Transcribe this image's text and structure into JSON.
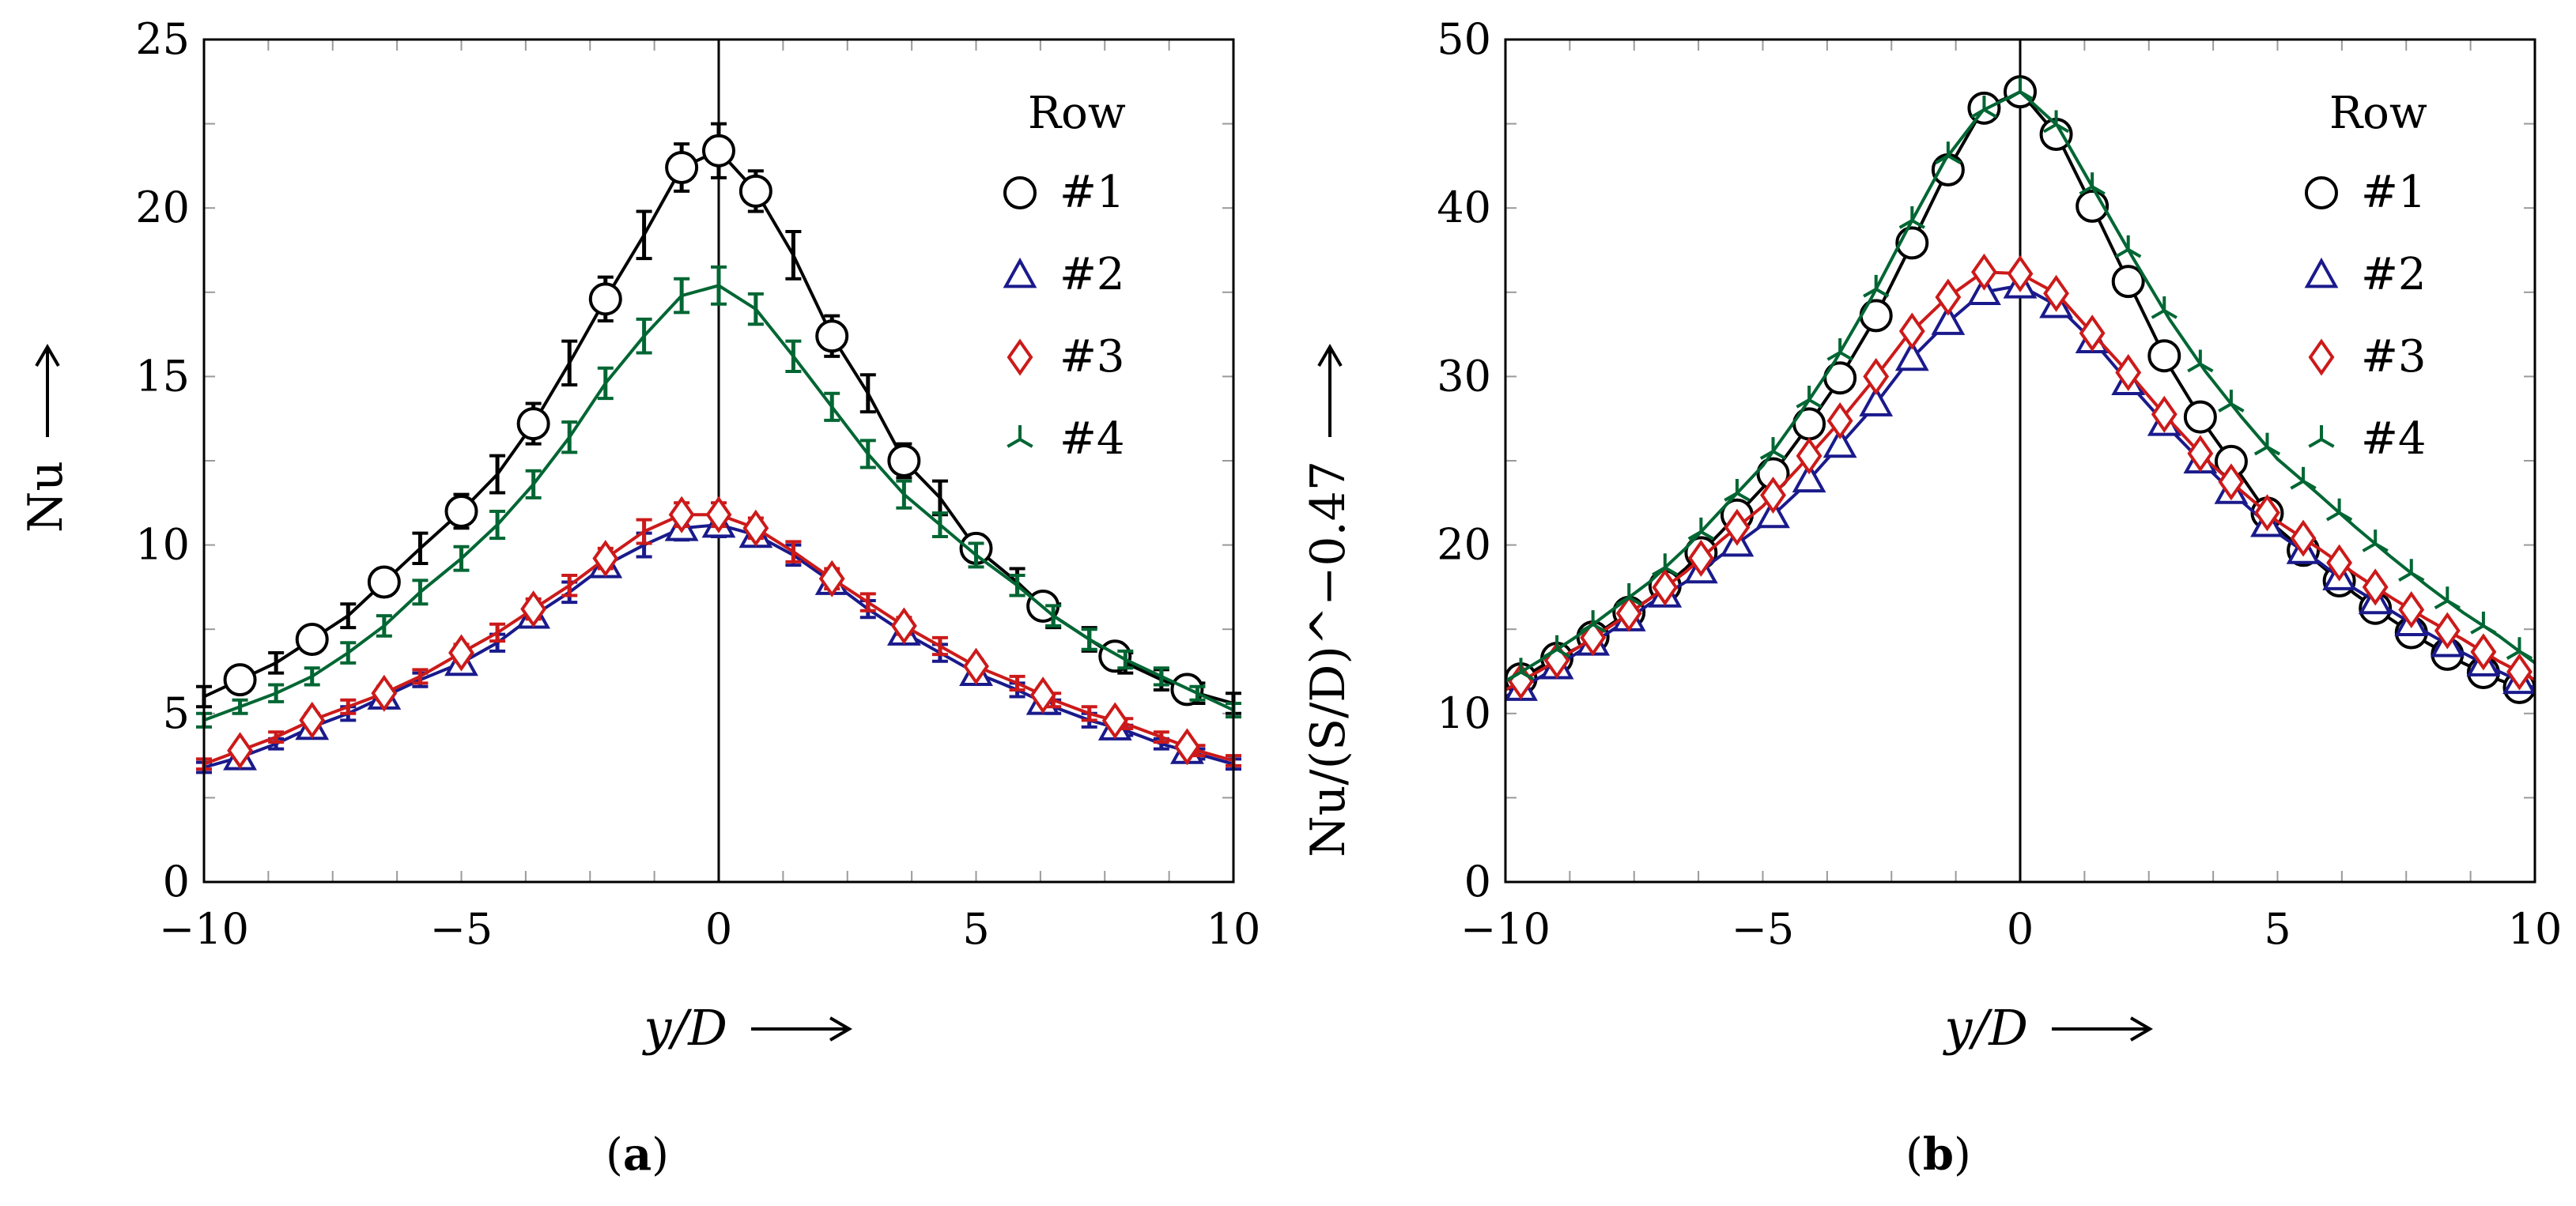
{
  "subfigures": [
    {
      "open": "(",
      "letter": "a",
      "close": ")"
    },
    {
      "open": "(",
      "letter": "b",
      "close": ")"
    }
  ],
  "colors": {
    "row1": "#000000",
    "row2": "#1a1a8c",
    "row3": "#cc1a1a",
    "row4": "#006633",
    "axis": "#000000",
    "tick": "#9a9a9a"
  },
  "chart_data": [
    {
      "type": "line",
      "panel": "a",
      "xlabel": "y/D",
      "ylabel": "Nu",
      "xlim": [
        -10,
        10
      ],
      "ylim": [
        0,
        25
      ],
      "xticks": [
        -10,
        -5,
        0,
        5,
        10
      ],
      "yticks": [
        0,
        5,
        10,
        15,
        20,
        25
      ],
      "xtick_labels": [
        "−10",
        "−5",
        "0",
        "5",
        "10"
      ],
      "ytick_labels": [
        "0",
        "5",
        "10",
        "15",
        "20",
        "25"
      ],
      "legend": {
        "title": "Row",
        "position": "top-right"
      },
      "vertical_line_x": 0,
      "series": [
        {
          "name": "#1",
          "marker": "circle",
          "color": "#000000",
          "x": [
            -10,
            -9.3,
            -8.6,
            -7.9,
            -7.2,
            -6.5,
            -5.8,
            -5.0,
            -4.3,
            -3.6,
            -2.9,
            -2.2,
            -1.45,
            -0.72,
            0,
            0.72,
            1.45,
            2.2,
            2.9,
            3.6,
            4.3,
            5.0,
            5.8,
            6.5,
            7.2,
            7.9,
            8.6,
            9.3,
            10
          ],
          "y": [
            5.5,
            6.0,
            6.5,
            7.2,
            7.9,
            8.9,
            9.9,
            11.0,
            12.1,
            13.6,
            15.4,
            17.3,
            19.2,
            21.2,
            21.7,
            20.5,
            18.6,
            16.2,
            14.5,
            12.5,
            11.4,
            9.9,
            8.9,
            7.9,
            7.2,
            6.5,
            6.0,
            5.6,
            5.3
          ],
          "err": [
            0.3,
            0.3,
            0.3,
            0.35,
            0.35,
            0.4,
            0.45,
            0.5,
            0.55,
            0.6,
            0.65,
            0.65,
            0.7,
            0.7,
            0.8,
            0.6,
            0.7,
            0.6,
            0.55,
            0.5,
            0.5,
            0.4,
            0.4,
            0.35,
            0.35,
            0.3,
            0.3,
            0.3,
            0.3
          ],
          "marker_x": [
            -9.3,
            -7.9,
            -6.5,
            -5.0,
            -3.6,
            -2.2,
            -0.72,
            0,
            0.72,
            2.2,
            3.6,
            5.0,
            6.3,
            7.7,
            9.1
          ]
        },
        {
          "name": "#2",
          "marker": "triangle",
          "color": "#1a1a8c",
          "x": [
            -10,
            -9.3,
            -8.6,
            -7.9,
            -7.2,
            -6.5,
            -5.8,
            -5.0,
            -4.3,
            -3.6,
            -2.9,
            -2.2,
            -1.45,
            -0.72,
            0,
            0.72,
            1.45,
            2.2,
            2.9,
            3.6,
            4.3,
            5.0,
            5.8,
            6.5,
            7.2,
            7.9,
            8.6,
            9.3,
            10
          ],
          "y": [
            3.4,
            3.7,
            4.1,
            4.6,
            5.0,
            5.5,
            6.0,
            6.5,
            7.1,
            7.9,
            8.6,
            9.4,
            10.0,
            10.5,
            10.6,
            10.3,
            9.7,
            8.9,
            8.1,
            7.4,
            6.8,
            6.2,
            5.7,
            5.2,
            4.8,
            4.5,
            4.1,
            3.8,
            3.5
          ],
          "err": [
            0.15,
            0.15,
            0.15,
            0.2,
            0.2,
            0.2,
            0.2,
            0.25,
            0.25,
            0.3,
            0.3,
            0.3,
            0.35,
            0.35,
            0.35,
            0.3,
            0.3,
            0.3,
            0.25,
            0.25,
            0.25,
            0.2,
            0.2,
            0.2,
            0.2,
            0.15,
            0.15,
            0.15,
            0.15
          ],
          "marker_x": [
            -9.3,
            -7.9,
            -6.5,
            -5.0,
            -3.6,
            -2.2,
            -0.72,
            0,
            0.72,
            2.2,
            3.6,
            5.0,
            6.3,
            7.7,
            9.1
          ]
        },
        {
          "name": "#3",
          "marker": "diamond",
          "color": "#cc1a1a",
          "x": [
            -10,
            -9.3,
            -8.6,
            -7.9,
            -7.2,
            -6.5,
            -5.8,
            -5.0,
            -4.3,
            -3.6,
            -2.9,
            -2.2,
            -1.45,
            -0.72,
            0,
            0.72,
            1.45,
            2.2,
            2.9,
            3.6,
            4.3,
            5.0,
            5.8,
            6.5,
            7.2,
            7.9,
            8.6,
            9.3,
            10
          ],
          "y": [
            3.5,
            3.9,
            4.3,
            4.8,
            5.2,
            5.6,
            6.1,
            6.8,
            7.4,
            8.1,
            8.8,
            9.6,
            10.4,
            10.9,
            10.9,
            10.5,
            9.8,
            9.0,
            8.3,
            7.6,
            7.0,
            6.4,
            5.9,
            5.4,
            5.0,
            4.7,
            4.3,
            3.9,
            3.6
          ],
          "err": [
            0.15,
            0.15,
            0.15,
            0.2,
            0.2,
            0.2,
            0.2,
            0.25,
            0.25,
            0.3,
            0.3,
            0.3,
            0.35,
            0.35,
            0.35,
            0.3,
            0.3,
            0.3,
            0.25,
            0.25,
            0.25,
            0.2,
            0.2,
            0.2,
            0.2,
            0.15,
            0.15,
            0.15,
            0.15
          ],
          "marker_x": [
            -9.3,
            -7.9,
            -6.5,
            -5.0,
            -3.6,
            -2.2,
            -0.72,
            0,
            0.72,
            2.2,
            3.6,
            5.0,
            6.3,
            7.7,
            9.1
          ]
        },
        {
          "name": "#4",
          "marker": "tri-star",
          "color": "#006633",
          "x": [
            -10,
            -9.3,
            -8.6,
            -7.9,
            -7.2,
            -6.5,
            -5.8,
            -5.0,
            -4.3,
            -3.6,
            -2.9,
            -2.2,
            -1.45,
            -0.72,
            0,
            0.72,
            1.45,
            2.2,
            2.9,
            3.6,
            4.3,
            5.0,
            5.8,
            6.5,
            7.2,
            7.9,
            8.6,
            9.3,
            10
          ],
          "y": [
            4.8,
            5.2,
            5.6,
            6.1,
            6.8,
            7.6,
            8.6,
            9.6,
            10.6,
            11.8,
            13.2,
            14.8,
            16.2,
            17.4,
            17.7,
            17.0,
            15.6,
            14.1,
            12.7,
            11.5,
            10.6,
            9.7,
            8.8,
            7.9,
            7.2,
            6.6,
            6.1,
            5.6,
            5.1
          ],
          "err": [
            0.2,
            0.2,
            0.25,
            0.25,
            0.3,
            0.3,
            0.35,
            0.35,
            0.4,
            0.4,
            0.45,
            0.45,
            0.5,
            0.5,
            0.55,
            0.45,
            0.45,
            0.4,
            0.4,
            0.4,
            0.35,
            0.35,
            0.3,
            0.3,
            0.3,
            0.25,
            0.25,
            0.2,
            0.2
          ],
          "marker_x": []
        }
      ]
    },
    {
      "type": "line",
      "panel": "b",
      "xlabel": "y/D",
      "ylabel": "Nu/(S/D)^−0.47",
      "xlim": [
        -10,
        10
      ],
      "ylim": [
        0,
        50
      ],
      "xticks": [
        -10,
        -5,
        0,
        5,
        10
      ],
      "yticks": [
        0,
        10,
        20,
        30,
        40,
        50
      ],
      "xtick_labels": [
        "−10",
        "−5",
        "0",
        "5",
        "10"
      ],
      "ytick_labels": [
        "0",
        "10",
        "20",
        "30",
        "40",
        "50"
      ],
      "legend": {
        "title": "Row",
        "position": "top-right"
      },
      "vertical_line_x": 0,
      "series": [
        {
          "name": "#1",
          "marker": "circle",
          "color": "#000000",
          "x": [
            -10,
            -9.3,
            -8.6,
            -7.9,
            -7.2,
            -6.5,
            -5.8,
            -5.0,
            -4.3,
            -3.6,
            -2.9,
            -2.2,
            -1.45,
            -0.72,
            0,
            0.72,
            1.45,
            2.2,
            2.9,
            3.6,
            4.3,
            5.0,
            5.8,
            6.5,
            7.2,
            7.9,
            8.6,
            9.3,
            10
          ],
          "y": [
            11.5,
            12.8,
            13.9,
            15.4,
            16.8,
            18.6,
            20.8,
            23.4,
            26.3,
            29.4,
            33.0,
            37.3,
            42.0,
            45.9,
            46.9,
            44.3,
            39.8,
            35.0,
            30.6,
            27.1,
            24.1,
            21.0,
            18.9,
            17.1,
            15.6,
            14.2,
            13.0,
            12.0,
            11.2
          ],
          "marker_x": [
            -9.7,
            -9.0,
            -8.3,
            -7.6,
            -6.9,
            -6.2,
            -5.5,
            -4.8,
            -4.1,
            -3.5,
            -2.8,
            -2.1,
            -1.4,
            -0.7,
            0,
            0.7,
            1.4,
            2.1,
            2.8,
            3.5,
            4.1,
            4.8,
            5.5,
            6.2,
            6.9,
            7.6,
            8.3,
            9.0,
            9.7
          ]
        },
        {
          "name": "#2",
          "marker": "triangle",
          "color": "#1a1a8c",
          "x": [
            -10,
            -9.3,
            -8.6,
            -7.9,
            -7.2,
            -6.5,
            -5.8,
            -5.0,
            -4.3,
            -3.6,
            -2.9,
            -2.2,
            -1.45,
            -0.72,
            0,
            0.72,
            1.45,
            2.2,
            2.9,
            3.6,
            4.3,
            5.0,
            5.8,
            6.5,
            7.2,
            7.9,
            8.6,
            9.3,
            10
          ],
          "y": [
            11.0,
            12.2,
            13.6,
            15.0,
            16.5,
            17.8,
            19.4,
            21.2,
            23.2,
            25.6,
            28.0,
            30.8,
            33.1,
            35.0,
            35.4,
            34.2,
            32.0,
            29.3,
            26.9,
            24.7,
            22.6,
            20.7,
            19.0,
            17.4,
            16.1,
            14.8,
            13.6,
            12.5,
            11.5
          ],
          "marker_x": [
            -9.7,
            -9.0,
            -8.3,
            -7.6,
            -6.9,
            -6.2,
            -5.5,
            -4.8,
            -4.1,
            -3.5,
            -2.8,
            -2.1,
            -1.4,
            -0.7,
            0,
            0.7,
            1.4,
            2.1,
            2.8,
            3.5,
            4.1,
            4.8,
            5.5,
            6.2,
            6.9,
            7.6,
            8.3,
            9.0,
            9.7
          ]
        },
        {
          "name": "#3",
          "marker": "diamond",
          "color": "#cc1a1a",
          "x": [
            -10,
            -9.3,
            -8.6,
            -7.9,
            -7.2,
            -6.5,
            -5.8,
            -5.0,
            -4.3,
            -3.6,
            -2.9,
            -2.2,
            -1.45,
            -0.72,
            0,
            0.72,
            1.45,
            2.2,
            2.9,
            3.6,
            4.3,
            5.0,
            5.8,
            6.5,
            7.2,
            7.9,
            8.6,
            9.3,
            10
          ],
          "y": [
            11.4,
            12.6,
            13.9,
            15.3,
            16.8,
            18.4,
            20.3,
            22.3,
            24.6,
            27.0,
            29.6,
            32.4,
            34.6,
            36.2,
            36.1,
            34.9,
            32.4,
            29.9,
            27.4,
            25.1,
            23.2,
            21.4,
            19.8,
            18.3,
            16.9,
            15.6,
            14.4,
            13.1,
            12.0
          ],
          "marker_x": [
            -9.7,
            -9.0,
            -8.3,
            -7.6,
            -6.9,
            -6.2,
            -5.5,
            -4.8,
            -4.1,
            -3.5,
            -2.8,
            -2.1,
            -1.4,
            -0.7,
            0,
            0.7,
            1.4,
            2.1,
            2.8,
            3.5,
            4.1,
            4.8,
            5.5,
            6.2,
            6.9,
            7.6,
            8.3,
            9.0,
            9.7
          ]
        },
        {
          "name": "#4",
          "marker": "tri-star",
          "color": "#006633",
          "x": [
            -10,
            -9.3,
            -8.6,
            -7.9,
            -7.2,
            -6.5,
            -5.8,
            -5.0,
            -4.3,
            -3.6,
            -2.9,
            -2.2,
            -1.45,
            -0.72,
            0,
            0.72,
            1.45,
            2.2,
            2.9,
            3.6,
            4.3,
            5.0,
            5.8,
            6.5,
            7.2,
            7.9,
            8.6,
            9.3,
            10
          ],
          "y": [
            11.9,
            13.2,
            14.6,
            16.2,
            17.8,
            19.8,
            22.1,
            24.7,
            27.7,
            30.9,
            34.6,
            38.7,
            42.9,
            45.8,
            46.9,
            44.9,
            41.0,
            37.0,
            33.4,
            30.3,
            27.6,
            25.1,
            23.0,
            21.1,
            19.3,
            17.6,
            16.0,
            14.6,
            13.0
          ],
          "marker_x": [
            -9.7,
            -9.0,
            -8.3,
            -7.6,
            -6.9,
            -6.2,
            -5.5,
            -4.8,
            -4.1,
            -3.5,
            -2.8,
            -2.1,
            -1.4,
            -0.7,
            0,
            0.7,
            1.4,
            2.1,
            2.8,
            3.5,
            4.1,
            4.8,
            5.5,
            6.2,
            6.9,
            7.6,
            8.3,
            9.0,
            9.7
          ]
        }
      ]
    }
  ]
}
